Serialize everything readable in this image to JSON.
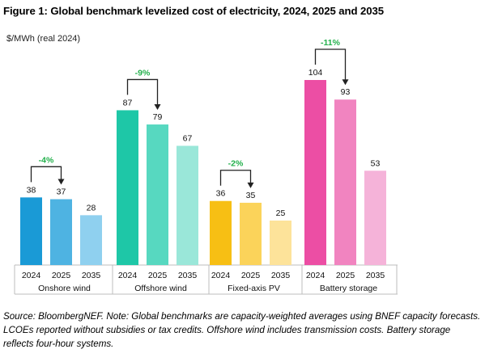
{
  "figure": {
    "title": "Figure 1: Global benchmark levelized cost of electricity, 2024, 2025 and 2035",
    "source": "Source: BloombergNEF. Note: Global benchmarks are capacity-weighted averages using BNEF capacity forecasts. LCOEs reported without subsidies or tax credits. Offshore wind includes transmission costs. Battery storage reflects four-hour systems."
  },
  "chart_data": {
    "type": "bar",
    "ylabel": "$/MWh (real 2024)",
    "ylim": [
      0,
      120
    ],
    "grid": false,
    "legend": "none",
    "groups": [
      {
        "name": "Onshore wind",
        "categories": [
          "2024",
          "2025",
          "2035"
        ],
        "values": [
          38,
          37,
          28
        ],
        "colors": [
          "#1a9ad6",
          "#4eb3e2",
          "#8fd0ef"
        ],
        "change_label": "-4%"
      },
      {
        "name": "Offshore wind",
        "categories": [
          "2024",
          "2025",
          "2035"
        ],
        "values": [
          87,
          79,
          67
        ],
        "colors": [
          "#1ec7a7",
          "#57d8c0",
          "#9ae7d9"
        ],
        "change_label": "-9%"
      },
      {
        "name": "Fixed-axis PV",
        "categories": [
          "2024",
          "2025",
          "2035"
        ],
        "values": [
          36,
          35,
          25
        ],
        "colors": [
          "#f7bf14",
          "#fbd35a",
          "#fde39a"
        ],
        "change_label": "-2%"
      },
      {
        "name": "Battery storage",
        "categories": [
          "2024",
          "2025",
          "2035"
        ],
        "values": [
          104,
          93,
          53
        ],
        "colors": [
          "#ec4ea4",
          "#f184c0",
          "#f5b3d9"
        ],
        "change_label": "-11%"
      }
    ],
    "change_label_color": "#22b04b"
  }
}
